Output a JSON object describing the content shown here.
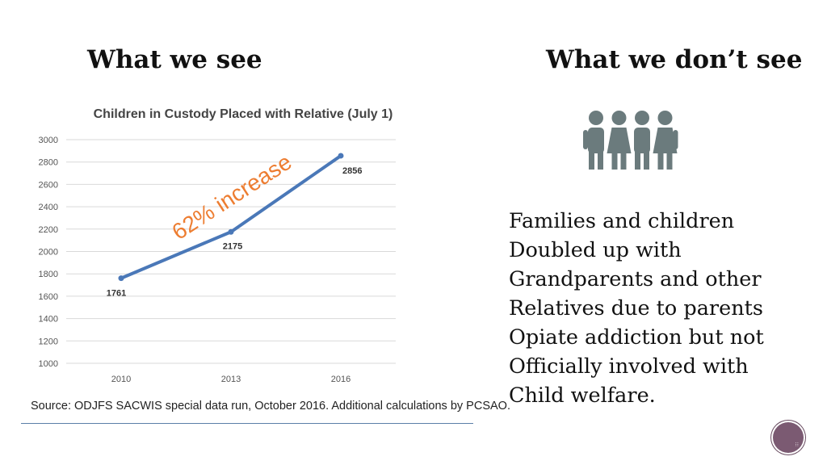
{
  "slide": {
    "heading_left": "What we see",
    "heading_right": "What we don’t see",
    "body_lines": [
      "Families and children",
      "Doubled up with",
      "Grandparents and other",
      "Relatives due to parents",
      "Opiate addiction but not",
      "Officially involved with",
      "Child welfare."
    ],
    "icon": "four-people-icon",
    "icon_color": "#6b7b7d",
    "nav_icon": "slide-nav-button"
  },
  "chart_data": {
    "type": "line",
    "title": "Children in Custody Placed with Relative (July 1)",
    "categories": [
      "2010",
      "2013",
      "2016"
    ],
    "series": [
      {
        "values": [
          1761,
          2175,
          2856
        ],
        "color": "#4a78b8"
      }
    ],
    "data_labels": [
      "1761",
      "2175",
      "2856"
    ],
    "y_ticks": [
      "1000",
      "1200",
      "1400",
      "1600",
      "1800",
      "2000",
      "2200",
      "2400",
      "2600",
      "2800",
      "3000"
    ],
    "ylim": [
      1000,
      3000
    ],
    "grid": true,
    "annotation": {
      "text": "62% increase",
      "color": "#ed7d31"
    },
    "source": "Source: ODJFS SACWIS special data run, October 2016. Additional calculations by PCSAO."
  }
}
